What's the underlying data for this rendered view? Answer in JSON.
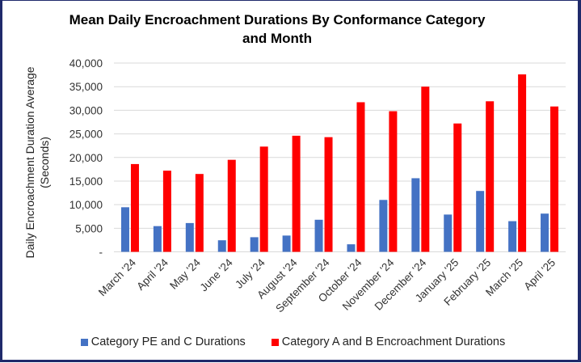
{
  "chart_data": {
    "type": "bar",
    "title_line1": "Mean Daily Encroachment Durations By Conformance Category",
    "title_line2": "and Month",
    "ylabel_line1": "Daily Encroachment Duration Average",
    "ylabel_line2": "(Seconds)",
    "xlabel": "",
    "ylim": [
      0,
      40000
    ],
    "yticks": [
      0,
      5000,
      10000,
      15000,
      20000,
      25000,
      30000,
      35000,
      40000
    ],
    "ytick_labels": [
      "-",
      "5,000",
      "10,000",
      "15,000",
      "20,000",
      "25,000",
      "30,000",
      "35,000",
      "40,000"
    ],
    "grid": true,
    "legend_position": "bottom",
    "categories": [
      "March '24",
      "April '24",
      "May '24",
      "June '24",
      "July '24",
      "August '24",
      "September '24",
      "October '24",
      "November '24",
      "December '24",
      "January '25",
      "February '25",
      "March '25",
      "April '25"
    ],
    "series": [
      {
        "name": "Category PE and C Durations",
        "color": "#4472c4",
        "values": [
          9450,
          5450,
          6100,
          2450,
          3100,
          3450,
          6800,
          1600,
          11000,
          15600,
          7900,
          12900,
          6500,
          8100
        ]
      },
      {
        "name": "Category A and B Encroachment Durations",
        "color": "#ff0000",
        "values": [
          18600,
          17200,
          16500,
          19500,
          22300,
          24600,
          24300,
          31700,
          29800,
          35000,
          27200,
          31900,
          37600,
          30800
        ]
      }
    ]
  }
}
